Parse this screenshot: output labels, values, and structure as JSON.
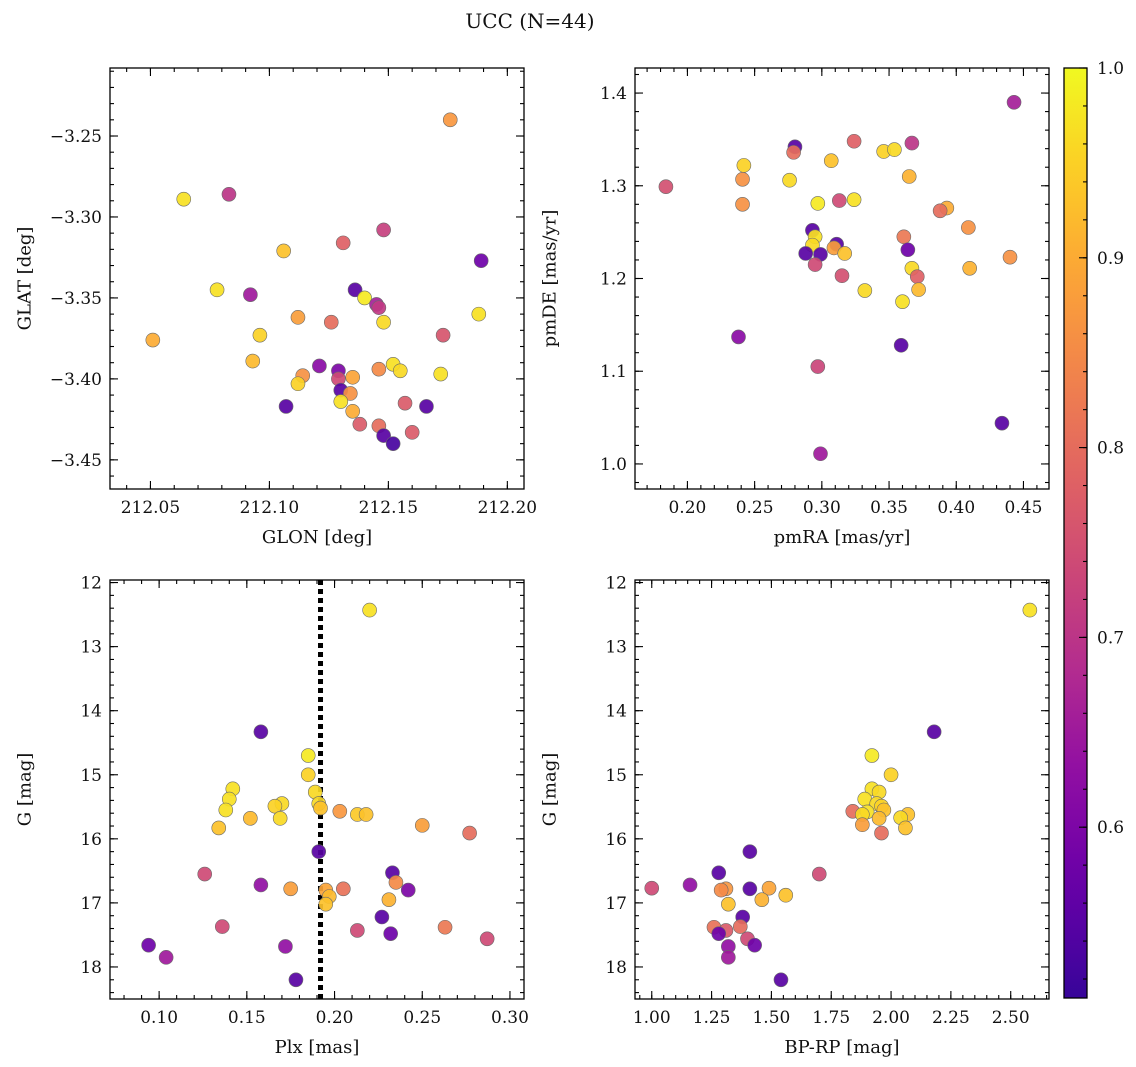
{
  "figure": {
    "title": "UCC (N=44)"
  },
  "colorbar": {
    "min": 0.51,
    "max": 1.0,
    "ticks": [
      0.6,
      0.7,
      0.8,
      0.9,
      1.0
    ],
    "tick_labels": [
      "0.6",
      "0.7",
      "0.8",
      "0.9",
      "1.0"
    ],
    "colormap": "plasma"
  },
  "chart_data": [
    {
      "type": "scatter",
      "xlabel": "GLON [deg]",
      "ylabel": "GLAT [deg]",
      "xlim": [
        212.033,
        212.207
      ],
      "ylim": [
        -3.468,
        -3.208
      ],
      "xticks": [
        212.05,
        212.1,
        212.15,
        212.2
      ],
      "xtick_labels": [
        "212.05",
        "212.10",
        "212.15",
        "212.20"
      ],
      "yticks": [
        -3.25,
        -3.3,
        -3.35,
        -3.4,
        -3.45
      ],
      "ytick_labels": [
        "−3.25",
        "−3.30",
        "−3.35",
        "−3.40",
        "−3.45"
      ],
      "y_inverted": false,
      "points": [
        {
          "x": 212.176,
          "y": -3.24,
          "c": 0.87
        },
        {
          "x": 212.064,
          "y": -3.289,
          "c": 0.97
        },
        {
          "x": 212.083,
          "y": -3.286,
          "c": 0.7
        },
        {
          "x": 212.148,
          "y": -3.308,
          "c": 0.72
        },
        {
          "x": 212.131,
          "y": -3.316,
          "c": 0.78
        },
        {
          "x": 212.106,
          "y": -3.321,
          "c": 0.93
        },
        {
          "x": 212.189,
          "y": -3.327,
          "c": 0.58
        },
        {
          "x": 212.078,
          "y": -3.345,
          "c": 0.97
        },
        {
          "x": 212.092,
          "y": -3.348,
          "c": 0.65
        },
        {
          "x": 212.136,
          "y": -3.345,
          "c": 0.55
        },
        {
          "x": 212.14,
          "y": -3.35,
          "c": 0.98
        },
        {
          "x": 212.145,
          "y": -3.354,
          "c": 0.66
        },
        {
          "x": 212.146,
          "y": -3.356,
          "c": 0.71
        },
        {
          "x": 212.112,
          "y": -3.362,
          "c": 0.88
        },
        {
          "x": 212.126,
          "y": -3.365,
          "c": 0.8
        },
        {
          "x": 212.148,
          "y": -3.365,
          "c": 0.96
        },
        {
          "x": 212.188,
          "y": -3.36,
          "c": 0.97
        },
        {
          "x": 212.096,
          "y": -3.373,
          "c": 0.95
        },
        {
          "x": 212.173,
          "y": -3.373,
          "c": 0.76
        },
        {
          "x": 212.051,
          "y": -3.376,
          "c": 0.9
        },
        {
          "x": 212.093,
          "y": -3.389,
          "c": 0.92
        },
        {
          "x": 212.121,
          "y": -3.392,
          "c": 0.62
        },
        {
          "x": 212.152,
          "y": -3.391,
          "c": 0.97
        },
        {
          "x": 212.146,
          "y": -3.394,
          "c": 0.85
        },
        {
          "x": 212.155,
          "y": -3.395,
          "c": 0.96
        },
        {
          "x": 212.129,
          "y": -3.395,
          "c": 0.6
        },
        {
          "x": 212.114,
          "y": -3.398,
          "c": 0.86
        },
        {
          "x": 212.135,
          "y": -3.399,
          "c": 0.89
        },
        {
          "x": 212.172,
          "y": -3.397,
          "c": 0.97
        },
        {
          "x": 212.129,
          "y": -3.4,
          "c": 0.74
        },
        {
          "x": 212.112,
          "y": -3.403,
          "c": 0.95
        },
        {
          "x": 212.13,
          "y": -3.407,
          "c": 0.55
        },
        {
          "x": 212.134,
          "y": -3.409,
          "c": 0.86
        },
        {
          "x": 212.13,
          "y": -3.414,
          "c": 0.97
        },
        {
          "x": 212.157,
          "y": -3.415,
          "c": 0.77
        },
        {
          "x": 212.107,
          "y": -3.417,
          "c": 0.55
        },
        {
          "x": 212.166,
          "y": -3.417,
          "c": 0.55
        },
        {
          "x": 212.135,
          "y": -3.42,
          "c": 0.9
        },
        {
          "x": 212.138,
          "y": -3.428,
          "c": 0.77
        },
        {
          "x": 212.146,
          "y": -3.429,
          "c": 0.8
        },
        {
          "x": 212.16,
          "y": -3.433,
          "c": 0.77
        },
        {
          "x": 212.148,
          "y": -3.435,
          "c": 0.55
        },
        {
          "x": 212.152,
          "y": -3.44,
          "c": 0.53
        }
      ]
    },
    {
      "type": "scatter",
      "xlabel": "pmRA [mas/yr]",
      "ylabel": "pmDE [mas/yr]",
      "xlim": [
        0.161,
        0.469
      ],
      "ylim": [
        0.973,
        1.427
      ],
      "xticks": [
        0.2,
        0.25,
        0.3,
        0.35,
        0.4,
        0.45
      ],
      "xtick_labels": [
        "0.20",
        "0.25",
        "0.30",
        "0.35",
        "0.40",
        "0.45"
      ],
      "yticks": [
        1.0,
        1.1,
        1.2,
        1.3,
        1.4
      ],
      "ytick_labels": [
        "1.0",
        "1.1",
        "1.2",
        "1.3",
        "1.4"
      ],
      "y_inverted": false,
      "points": [
        {
          "x": 0.443,
          "y": 1.39,
          "c": 0.66
        },
        {
          "x": 0.324,
          "y": 1.348,
          "c": 0.78
        },
        {
          "x": 0.367,
          "y": 1.346,
          "c": 0.7
        },
        {
          "x": 0.28,
          "y": 1.342,
          "c": 0.55
        },
        {
          "x": 0.279,
          "y": 1.336,
          "c": 0.8
        },
        {
          "x": 0.346,
          "y": 1.337,
          "c": 0.95
        },
        {
          "x": 0.354,
          "y": 1.339,
          "c": 0.96
        },
        {
          "x": 0.307,
          "y": 1.327,
          "c": 0.93
        },
        {
          "x": 0.242,
          "y": 1.322,
          "c": 0.95
        },
        {
          "x": 0.365,
          "y": 1.31,
          "c": 0.91
        },
        {
          "x": 0.241,
          "y": 1.307,
          "c": 0.86
        },
        {
          "x": 0.276,
          "y": 1.306,
          "c": 0.96
        },
        {
          "x": 0.184,
          "y": 1.299,
          "c": 0.75
        },
        {
          "x": 0.313,
          "y": 1.284,
          "c": 0.74
        },
        {
          "x": 0.324,
          "y": 1.285,
          "c": 0.97
        },
        {
          "x": 0.297,
          "y": 1.281,
          "c": 0.98
        },
        {
          "x": 0.241,
          "y": 1.28,
          "c": 0.86
        },
        {
          "x": 0.393,
          "y": 1.276,
          "c": 0.9
        },
        {
          "x": 0.388,
          "y": 1.273,
          "c": 0.8
        },
        {
          "x": 0.409,
          "y": 1.255,
          "c": 0.86
        },
        {
          "x": 0.293,
          "y": 1.252,
          "c": 0.55
        },
        {
          "x": 0.361,
          "y": 1.245,
          "c": 0.82
        },
        {
          "x": 0.295,
          "y": 1.245,
          "c": 0.97
        },
        {
          "x": 0.311,
          "y": 1.237,
          "c": 0.55
        },
        {
          "x": 0.293,
          "y": 1.236,
          "c": 0.96
        },
        {
          "x": 0.309,
          "y": 1.233,
          "c": 0.88
        },
        {
          "x": 0.364,
          "y": 1.231,
          "c": 0.58
        },
        {
          "x": 0.288,
          "y": 1.227,
          "c": 0.55
        },
        {
          "x": 0.299,
          "y": 1.226,
          "c": 0.55
        },
        {
          "x": 0.317,
          "y": 1.227,
          "c": 0.93
        },
        {
          "x": 0.44,
          "y": 1.223,
          "c": 0.86
        },
        {
          "x": 0.295,
          "y": 1.215,
          "c": 0.74
        },
        {
          "x": 0.367,
          "y": 1.211,
          "c": 0.96
        },
        {
          "x": 0.41,
          "y": 1.211,
          "c": 0.91
        },
        {
          "x": 0.315,
          "y": 1.203,
          "c": 0.75
        },
        {
          "x": 0.371,
          "y": 1.202,
          "c": 0.78
        },
        {
          "x": 0.332,
          "y": 1.187,
          "c": 0.96
        },
        {
          "x": 0.372,
          "y": 1.188,
          "c": 0.92
        },
        {
          "x": 0.36,
          "y": 1.175,
          "c": 0.97
        },
        {
          "x": 0.238,
          "y": 1.137,
          "c": 0.62
        },
        {
          "x": 0.359,
          "y": 1.128,
          "c": 0.55
        },
        {
          "x": 0.297,
          "y": 1.105,
          "c": 0.73
        },
        {
          "x": 0.434,
          "y": 1.044,
          "c": 0.55
        },
        {
          "x": 0.299,
          "y": 1.011,
          "c": 0.65
        }
      ]
    },
    {
      "type": "scatter",
      "xlabel": "Plx [mas]",
      "ylabel": "G [mag]",
      "xlim": [
        0.072,
        0.308
      ],
      "ylim": [
        18.5,
        11.96
      ],
      "xticks": [
        0.1,
        0.15,
        0.2,
        0.25,
        0.3
      ],
      "xtick_labels": [
        "0.10",
        "0.15",
        "0.20",
        "0.25",
        "0.30"
      ],
      "yticks": [
        12,
        13,
        14,
        15,
        16,
        17,
        18
      ],
      "ytick_labels": [
        "12",
        "13",
        "14",
        "15",
        "16",
        "17",
        "18"
      ],
      "y_inverted": true,
      "vline": 0.192,
      "points": [
        {
          "x": 0.22,
          "y": 12.43,
          "c": 0.97
        },
        {
          "x": 0.158,
          "y": 14.33,
          "c": 0.55
        },
        {
          "x": 0.185,
          "y": 14.7,
          "c": 0.98
        },
        {
          "x": 0.185,
          "y": 15.0,
          "c": 0.95
        },
        {
          "x": 0.142,
          "y": 15.22,
          "c": 0.97
        },
        {
          "x": 0.189,
          "y": 15.27,
          "c": 0.96
        },
        {
          "x": 0.14,
          "y": 15.38,
          "c": 0.97
        },
        {
          "x": 0.17,
          "y": 15.45,
          "c": 0.96
        },
        {
          "x": 0.166,
          "y": 15.49,
          "c": 0.95
        },
        {
          "x": 0.191,
          "y": 15.45,
          "c": 0.96
        },
        {
          "x": 0.192,
          "y": 15.52,
          "c": 0.93
        },
        {
          "x": 0.138,
          "y": 15.55,
          "c": 0.97
        },
        {
          "x": 0.203,
          "y": 15.57,
          "c": 0.87
        },
        {
          "x": 0.213,
          "y": 15.62,
          "c": 0.94
        },
        {
          "x": 0.218,
          "y": 15.62,
          "c": 0.93
        },
        {
          "x": 0.152,
          "y": 15.68,
          "c": 0.92
        },
        {
          "x": 0.169,
          "y": 15.68,
          "c": 0.96
        },
        {
          "x": 0.25,
          "y": 15.79,
          "c": 0.88
        },
        {
          "x": 0.134,
          "y": 15.83,
          "c": 0.93
        },
        {
          "x": 0.277,
          "y": 15.91,
          "c": 0.8
        },
        {
          "x": 0.191,
          "y": 16.2,
          "c": 0.55
        },
        {
          "x": 0.126,
          "y": 16.55,
          "c": 0.74
        },
        {
          "x": 0.233,
          "y": 16.53,
          "c": 0.55
        },
        {
          "x": 0.235,
          "y": 16.68,
          "c": 0.85
        },
        {
          "x": 0.158,
          "y": 16.72,
          "c": 0.63
        },
        {
          "x": 0.175,
          "y": 16.78,
          "c": 0.88
        },
        {
          "x": 0.195,
          "y": 16.8,
          "c": 0.89
        },
        {
          "x": 0.205,
          "y": 16.78,
          "c": 0.81
        },
        {
          "x": 0.242,
          "y": 16.8,
          "c": 0.6
        },
        {
          "x": 0.197,
          "y": 16.9,
          "c": 0.92
        },
        {
          "x": 0.231,
          "y": 16.95,
          "c": 0.91
        },
        {
          "x": 0.195,
          "y": 17.02,
          "c": 0.93
        },
        {
          "x": 0.227,
          "y": 17.22,
          "c": 0.55
        },
        {
          "x": 0.136,
          "y": 17.37,
          "c": 0.74
        },
        {
          "x": 0.263,
          "y": 17.38,
          "c": 0.82
        },
        {
          "x": 0.213,
          "y": 17.43,
          "c": 0.74
        },
        {
          "x": 0.232,
          "y": 17.48,
          "c": 0.58
        },
        {
          "x": 0.287,
          "y": 17.56,
          "c": 0.74
        },
        {
          "x": 0.094,
          "y": 17.66,
          "c": 0.58
        },
        {
          "x": 0.172,
          "y": 17.68,
          "c": 0.63
        },
        {
          "x": 0.104,
          "y": 17.85,
          "c": 0.65
        },
        {
          "x": 0.178,
          "y": 18.2,
          "c": 0.55
        }
      ]
    },
    {
      "type": "scatter",
      "xlabel": "BP-RP [mag]",
      "ylabel": "G [mag]",
      "xlim": [
        0.93,
        2.66
      ],
      "ylim": [
        18.5,
        11.96
      ],
      "xticks": [
        1.0,
        1.25,
        1.5,
        1.75,
        2.0,
        2.25,
        2.5
      ],
      "xtick_labels": [
        "1.00",
        "1.25",
        "1.50",
        "1.75",
        "2.00",
        "2.25",
        "2.50"
      ],
      "yticks": [
        12,
        13,
        14,
        15,
        16,
        17,
        18
      ],
      "ytick_labels": [
        "12",
        "13",
        "14",
        "15",
        "16",
        "17",
        "18"
      ],
      "y_inverted": true,
      "points": [
        {
          "x": 2.58,
          "y": 12.43,
          "c": 0.97
        },
        {
          "x": 2.18,
          "y": 14.33,
          "c": 0.55
        },
        {
          "x": 1.92,
          "y": 14.7,
          "c": 0.98
        },
        {
          "x": 2.0,
          "y": 15.0,
          "c": 0.95
        },
        {
          "x": 1.92,
          "y": 15.22,
          "c": 0.97
        },
        {
          "x": 1.95,
          "y": 15.27,
          "c": 0.96
        },
        {
          "x": 1.89,
          "y": 15.38,
          "c": 0.97
        },
        {
          "x": 1.94,
          "y": 15.45,
          "c": 0.96
        },
        {
          "x": 1.96,
          "y": 15.49,
          "c": 0.95
        },
        {
          "x": 1.97,
          "y": 15.55,
          "c": 0.93
        },
        {
          "x": 1.84,
          "y": 15.57,
          "c": 0.8
        },
        {
          "x": 1.9,
          "y": 15.58,
          "c": 0.97
        },
        {
          "x": 1.88,
          "y": 15.62,
          "c": 0.96
        },
        {
          "x": 2.07,
          "y": 15.62,
          "c": 0.93
        },
        {
          "x": 1.95,
          "y": 15.68,
          "c": 0.92
        },
        {
          "x": 2.04,
          "y": 15.67,
          "c": 0.96
        },
        {
          "x": 1.88,
          "y": 15.78,
          "c": 0.88
        },
        {
          "x": 2.06,
          "y": 15.83,
          "c": 0.93
        },
        {
          "x": 1.96,
          "y": 15.91,
          "c": 0.8
        },
        {
          "x": 1.41,
          "y": 16.2,
          "c": 0.55
        },
        {
          "x": 1.28,
          "y": 16.53,
          "c": 0.55
        },
        {
          "x": 1.7,
          "y": 16.55,
          "c": 0.74
        },
        {
          "x": 1.16,
          "y": 16.72,
          "c": 0.63
        },
        {
          "x": 1.0,
          "y": 16.77,
          "c": 0.74
        },
        {
          "x": 1.41,
          "y": 16.78,
          "c": 0.55
        },
        {
          "x": 1.31,
          "y": 16.78,
          "c": 0.87
        },
        {
          "x": 1.49,
          "y": 16.77,
          "c": 0.89
        },
        {
          "x": 1.29,
          "y": 16.8,
          "c": 0.85
        },
        {
          "x": 1.56,
          "y": 16.88,
          "c": 0.93
        },
        {
          "x": 1.46,
          "y": 16.95,
          "c": 0.91
        },
        {
          "x": 1.32,
          "y": 17.02,
          "c": 0.93
        },
        {
          "x": 1.38,
          "y": 17.22,
          "c": 0.55
        },
        {
          "x": 1.37,
          "y": 17.37,
          "c": 0.8
        },
        {
          "x": 1.26,
          "y": 17.38,
          "c": 0.81
        },
        {
          "x": 1.31,
          "y": 17.43,
          "c": 0.77
        },
        {
          "x": 1.28,
          "y": 17.48,
          "c": 0.58
        },
        {
          "x": 1.4,
          "y": 17.56,
          "c": 0.74
        },
        {
          "x": 1.43,
          "y": 17.66,
          "c": 0.58
        },
        {
          "x": 1.32,
          "y": 17.68,
          "c": 0.63
        },
        {
          "x": 1.32,
          "y": 17.85,
          "c": 0.65
        },
        {
          "x": 1.54,
          "y": 18.2,
          "c": 0.55
        }
      ]
    }
  ]
}
